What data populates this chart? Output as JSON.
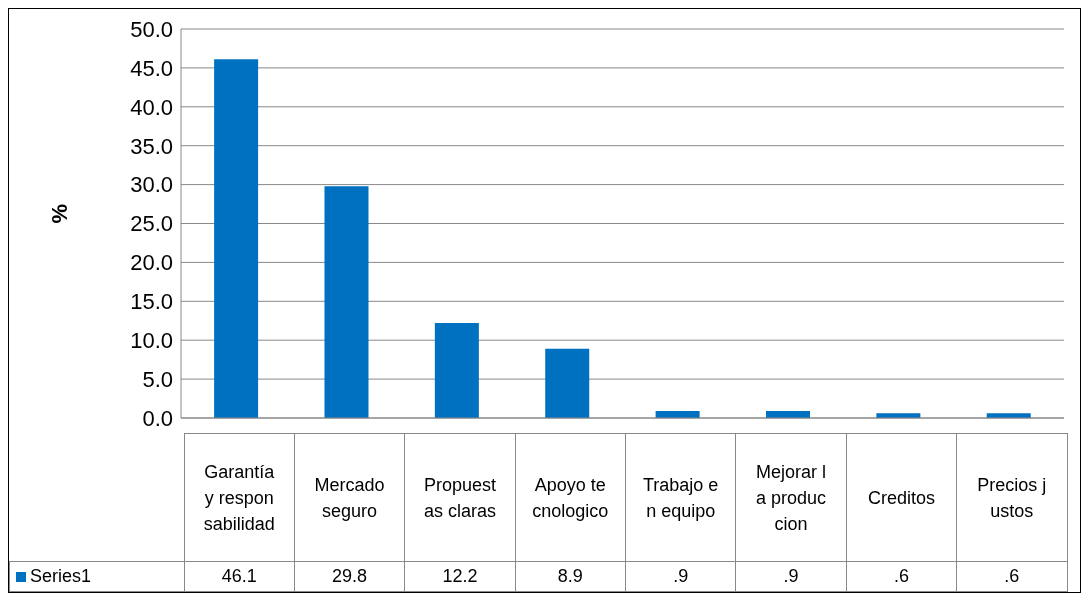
{
  "chart_data": {
    "type": "bar",
    "ylabel": "%",
    "categories": [
      "Garantía y responsabilidad",
      "Mercado seguro",
      "Propuestas claras",
      "Apoyo tecnologico",
      "Trabajo en equipo",
      "Mejorar la produccion",
      "Creditos",
      "Precios justos"
    ],
    "series": [
      {
        "name": "Series1",
        "color": "#0070c0",
        "values": [
          46.1,
          29.8,
          12.2,
          8.9,
          0.9,
          0.9,
          0.6,
          0.6
        ],
        "value_labels": [
          "46.1",
          "29.8",
          "12.2",
          "8.9",
          ".9",
          ".9",
          ".6",
          ".6"
        ]
      }
    ],
    "ylim": [
      0,
      50
    ],
    "yticks": [
      {
        "value": 0,
        "label": "0.0"
      },
      {
        "value": 5,
        "label": "5.0"
      },
      {
        "value": 10,
        "label": "10.0"
      },
      {
        "value": 15,
        "label": "15.0"
      },
      {
        "value": 20,
        "label": "20.0"
      },
      {
        "value": 25,
        "label": "25.0"
      },
      {
        "value": 30,
        "label": "30.0"
      },
      {
        "value": 35,
        "label": "35.0"
      },
      {
        "value": 40,
        "label": "40.0"
      },
      {
        "value": 45,
        "label": "45.0"
      },
      {
        "value": 50,
        "label": "50.0"
      }
    ],
    "grid": "y",
    "legend": "bottom"
  }
}
